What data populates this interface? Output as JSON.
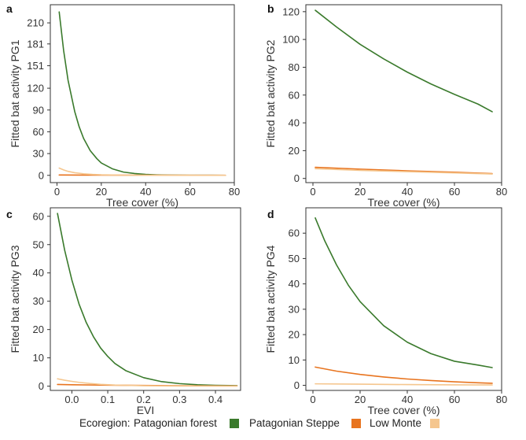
{
  "legend": {
    "title": "Ecoregion:",
    "items": [
      {
        "name": "Patagonian forest",
        "color": "#3a7a2c"
      },
      {
        "name": "Patagonian Steppe",
        "color": "#e8741f"
      },
      {
        "name": "Low Monte",
        "color": "#f5c68e"
      }
    ]
  },
  "chart_data": [
    {
      "letter": "a",
      "type": "line",
      "ylabel": "Fitted bat activity PG1",
      "xlabel": "Tree cover (%)",
      "xlim": [
        -3,
        80
      ],
      "ylim": [
        -10,
        235
      ],
      "xticks": [
        0,
        20,
        40,
        60,
        80
      ],
      "xtick_labels": [
        "0",
        "20",
        "40",
        "60",
        "80"
      ],
      "yticks": [
        0,
        30,
        60,
        90,
        120,
        151,
        181,
        210
      ],
      "ytick_labels": [
        "0",
        "30",
        "60",
        "90",
        "120",
        "151",
        "181",
        "210"
      ],
      "series": [
        {
          "name": "Patagonian forest",
          "x": [
            1,
            3,
            5,
            8,
            10,
            12,
            15,
            18,
            20,
            25,
            30,
            35,
            40,
            45,
            50,
            60,
            70,
            76
          ],
          "y": [
            225,
            172,
            131,
            88,
            67,
            51,
            34,
            23,
            17,
            9,
            4.5,
            2.5,
            1.3,
            0.7,
            0.4,
            0.1,
            0.05,
            0.03
          ]
        },
        {
          "name": "Patagonian Steppe",
          "x": [
            1,
            10,
            20,
            40,
            60,
            76
          ],
          "y": [
            0.5,
            0.4,
            0.3,
            0.2,
            0.1,
            0.1
          ]
        },
        {
          "name": "Low Monte",
          "x": [
            1,
            3,
            5,
            8,
            12,
            16,
            20,
            30,
            40,
            60,
            76
          ],
          "y": [
            10,
            7.5,
            5.5,
            3.6,
            2.1,
            1.3,
            0.8,
            0.3,
            0.1,
            0.05,
            0.02
          ]
        }
      ]
    },
    {
      "letter": "b",
      "type": "line",
      "ylabel": "Fitted bat activity PG2",
      "xlabel": "Tree cover (%)",
      "xlim": [
        -3,
        80
      ],
      "ylim": [
        -3,
        125
      ],
      "xticks": [
        0,
        20,
        40,
        60,
        80
      ],
      "xtick_labels": [
        "0",
        "20",
        "40",
        "60",
        "80"
      ],
      "yticks": [
        0,
        20,
        40,
        60,
        80,
        100,
        120
      ],
      "ytick_labels": [
        "0",
        "20",
        "40",
        "60",
        "80",
        "100",
        "120"
      ],
      "series": [
        {
          "name": "Patagonian forest",
          "x": [
            1,
            10,
            20,
            30,
            40,
            50,
            60,
            70,
            76
          ],
          "y": [
            121,
            109,
            96.5,
            86,
            76.5,
            68,
            60.5,
            53.5,
            48
          ]
        },
        {
          "name": "Patagonian Steppe",
          "x": [
            1,
            20,
            40,
            60,
            76
          ],
          "y": [
            8,
            6.7,
            5.5,
            4.5,
            3.5
          ]
        },
        {
          "name": "Low Monte",
          "x": [
            1,
            20,
            40,
            60,
            76
          ],
          "y": [
            7,
            5.8,
            4.9,
            4.0,
            3.2
          ]
        }
      ]
    },
    {
      "letter": "c",
      "type": "line",
      "ylabel": "Fitted bat activity PG3",
      "xlabel": "EVI",
      "xlim": [
        -0.06,
        0.47
      ],
      "ylim": [
        -1.5,
        63
      ],
      "xticks": [
        0.0,
        0.1,
        0.2,
        0.3,
        0.4
      ],
      "xtick_labels": [
        "0.0",
        "0.1",
        "0.2",
        "0.3",
        "0.4"
      ],
      "yticks": [
        0,
        10,
        20,
        30,
        40,
        50,
        60
      ],
      "ytick_labels": [
        "0",
        "10",
        "20",
        "30",
        "40",
        "50",
        "60"
      ],
      "series": [
        {
          "name": "Patagonian forest",
          "x": [
            -0.04,
            -0.02,
            0.0,
            0.02,
            0.04,
            0.06,
            0.08,
            0.1,
            0.12,
            0.15,
            0.2,
            0.25,
            0.3,
            0.35,
            0.4,
            0.46
          ],
          "y": [
            61,
            48,
            37.5,
            29,
            22.5,
            17.5,
            13.5,
            10.5,
            8,
            5.5,
            3,
            1.6,
            0.9,
            0.5,
            0.3,
            0.2
          ]
        },
        {
          "name": "Patagonian Steppe",
          "x": [
            -0.04,
            0.0,
            0.1,
            0.2,
            0.3,
            0.46
          ],
          "y": [
            0.6,
            0.5,
            0.35,
            0.25,
            0.15,
            0.1
          ]
        },
        {
          "name": "Low Monte",
          "x": [
            -0.04,
            -0.02,
            0.0,
            0.02,
            0.05,
            0.08,
            0.12,
            0.2,
            0.3,
            0.46
          ],
          "y": [
            2.6,
            2.1,
            1.7,
            1.35,
            0.95,
            0.65,
            0.4,
            0.15,
            0.05,
            0.02
          ]
        }
      ]
    },
    {
      "letter": "d",
      "type": "line",
      "ylabel": "Fitted bat activity PG4",
      "xlabel": "Tree cover (%)",
      "xlim": [
        -3,
        80
      ],
      "ylim": [
        -2,
        70
      ],
      "xticks": [
        0,
        20,
        40,
        60,
        80
      ],
      "xtick_labels": [
        "0",
        "20",
        "40",
        "60",
        "80"
      ],
      "yticks": [
        0,
        10,
        20,
        30,
        40,
        50,
        60
      ],
      "ytick_labels": [
        "0",
        "10",
        "20",
        "30",
        "40",
        "50",
        "60"
      ],
      "series": [
        {
          "name": "Patagonian forest",
          "x": [
            1,
            5,
            10,
            15,
            20,
            30,
            40,
            50,
            60,
            70,
            76
          ],
          "y": [
            66,
            57,
            47.5,
            39.5,
            33,
            23.5,
            17,
            12.5,
            9.5,
            8,
            7
          ]
        },
        {
          "name": "Patagonian Steppe",
          "x": [
            1,
            10,
            20,
            30,
            40,
            50,
            60,
            70,
            76
          ],
          "y": [
            7.2,
            5.6,
            4.3,
            3.3,
            2.5,
            1.9,
            1.4,
            1.0,
            0.8
          ]
        },
        {
          "name": "Low Monte",
          "x": [
            1,
            20,
            40,
            60,
            76
          ],
          "y": [
            0.6,
            0.45,
            0.3,
            0.2,
            0.15
          ]
        }
      ]
    }
  ]
}
